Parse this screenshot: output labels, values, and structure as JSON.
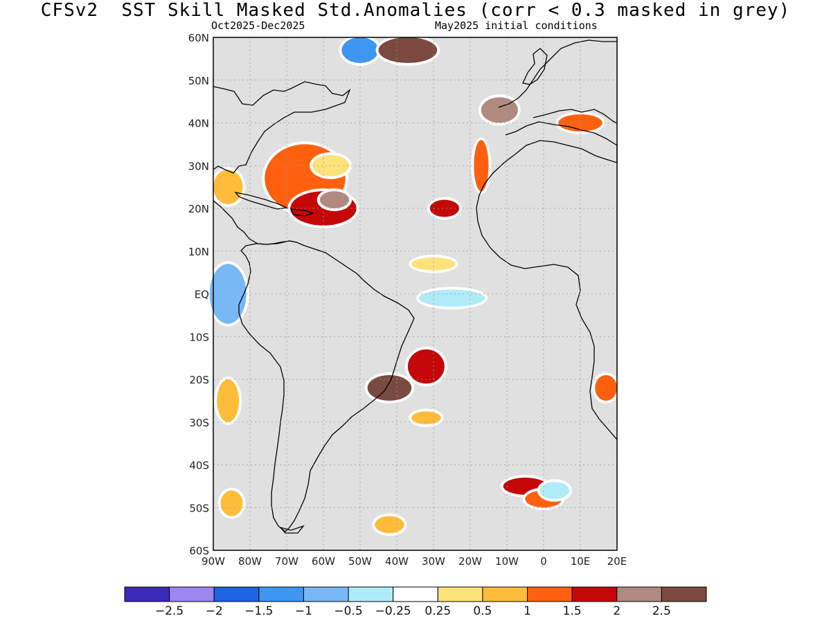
{
  "header": {
    "title": "CFSv2  SST Skill Masked Std.Anomalies (corr < 0.3 masked in grey)",
    "valid_period": "Oct2025-Dec2025",
    "initial_conditions": "May2025 initial conditions"
  },
  "map": {
    "lon_range": [
      -90,
      20
    ],
    "lat_range": [
      -60,
      60
    ],
    "mask_color": "#e0e0e0",
    "grid": "dotted",
    "lat_ticks": [
      {
        "lat": 60,
        "label": "60N"
      },
      {
        "lat": 50,
        "label": "50N"
      },
      {
        "lat": 40,
        "label": "40N"
      },
      {
        "lat": 30,
        "label": "30N"
      },
      {
        "lat": 20,
        "label": "20N"
      },
      {
        "lat": 10,
        "label": "10N"
      },
      {
        "lat": 0,
        "label": "EQ"
      },
      {
        "lat": -10,
        "label": "10S"
      },
      {
        "lat": -20,
        "label": "20S"
      },
      {
        "lat": -30,
        "label": "30S"
      },
      {
        "lat": -40,
        "label": "40S"
      },
      {
        "lat": -50,
        "label": "50S"
      },
      {
        "lat": -60,
        "label": "60S"
      }
    ],
    "lon_ticks": [
      {
        "lon": -90,
        "label": "90W"
      },
      {
        "lon": -80,
        "label": "80W"
      },
      {
        "lon": -70,
        "label": "70W"
      },
      {
        "lon": -60,
        "label": "60W"
      },
      {
        "lon": -50,
        "label": "50W"
      },
      {
        "lon": -40,
        "label": "40W"
      },
      {
        "lon": -30,
        "label": "30W"
      },
      {
        "lon": -20,
        "label": "20W"
      },
      {
        "lon": -10,
        "label": "10W"
      },
      {
        "lon": 0,
        "label": "0"
      },
      {
        "lon": 10,
        "label": "10E"
      },
      {
        "lon": 20,
        "label": "20E"
      }
    ]
  },
  "colorbar": {
    "colors": [
      "#3a2ab8",
      "#9b86f2",
      "#1e64e4",
      "#3c96f2",
      "#78b8f4",
      "#b0ecf8",
      "#ffffff",
      "#ffe27a",
      "#ffbc3a",
      "#ff6010",
      "#c40808",
      "#b08a80",
      "#7a4a40"
    ],
    "labels": [
      "-2.5",
      "-2",
      "-1.5",
      "-1",
      "-0.5",
      "-0.25",
      "0.25",
      "0.5",
      "1",
      "1.5",
      "2",
      "2.5"
    ]
  },
  "anomalies": [
    {
      "name": "gulf-stream-subtropics",
      "lon": -65,
      "lat": 27,
      "rx": 11,
      "ry": 8,
      "color": "#ff6010"
    },
    {
      "name": "sargasso-warm-core",
      "lon": -58,
      "lat": 30,
      "rx": 5,
      "ry": 2.5,
      "color": "#ffe27a"
    },
    {
      "name": "caribbean-warm",
      "lon": -60,
      "lat": 20,
      "rx": 9,
      "ry": 4,
      "color": "#c40808"
    },
    {
      "name": "caribbean-strong",
      "lon": -57,
      "lat": 22,
      "rx": 4,
      "ry": 2,
      "color": "#b08a80"
    },
    {
      "name": "gulf-of-mexico",
      "lon": -86,
      "lat": 25,
      "rx": 4,
      "ry": 4,
      "color": "#ffbc3a"
    },
    {
      "name": "labrador-sea-cold",
      "lon": -50,
      "lat": 57,
      "rx": 5,
      "ry": 3,
      "color": "#3c96f2"
    },
    {
      "name": "north-atlantic-strong",
      "lon": -37,
      "lat": 57,
      "rx": 8,
      "ry": 3,
      "color": "#7a4a40"
    },
    {
      "name": "iberian-strong",
      "lon": -12,
      "lat": 43,
      "rx": 5,
      "ry": 3,
      "color": "#b08a80"
    },
    {
      "name": "canary-warm",
      "lon": -17,
      "lat": 30,
      "rx": 2,
      "ry": 6,
      "color": "#ff6010"
    },
    {
      "name": "subtropical-east",
      "lon": -27,
      "lat": 20,
      "rx": 4,
      "ry": 2,
      "color": "#c40808"
    },
    {
      "name": "mediterranean-warm",
      "lon": 10,
      "lat": 40,
      "rx": 6,
      "ry": 2,
      "color": "#ff6010"
    },
    {
      "name": "eastern-pacific-cold",
      "lon": -86,
      "lat": 0,
      "rx": 5,
      "ry": 7,
      "color": "#78b8f4"
    },
    {
      "name": "equatorial-cold",
      "lon": -25,
      "lat": -1,
      "rx": 9,
      "ry": 2,
      "color": "#b0ecf8"
    },
    {
      "name": "tropical-warm-band",
      "lon": -30,
      "lat": 7,
      "rx": 6,
      "ry": 1.5,
      "color": "#ffe27a"
    },
    {
      "name": "brazil-current-strong",
      "lon": -42,
      "lat": -22,
      "rx": 6,
      "ry": 3,
      "color": "#7a4a40"
    },
    {
      "name": "south-atlantic-warm",
      "lon": -32,
      "lat": -17,
      "rx": 5,
      "ry": 4,
      "color": "#c40808"
    },
    {
      "name": "south-atlantic-mid",
      "lon": -32,
      "lat": -29,
      "rx": 4,
      "ry": 1.5,
      "color": "#ffbc3a"
    },
    {
      "name": "benguela-warm",
      "lon": 17,
      "lat": -22,
      "rx": 3,
      "ry": 3,
      "color": "#ff6010"
    },
    {
      "name": "southern-ocean-warm",
      "lon": -5,
      "lat": -45,
      "rx": 6,
      "ry": 2,
      "color": "#c40808"
    },
    {
      "name": "southern-ocean-strong",
      "lon": 0,
      "lat": -48,
      "rx": 5,
      "ry": 2,
      "color": "#ff6010"
    },
    {
      "name": "southern-ocean-cold",
      "lon": 3,
      "lat": -46,
      "rx": 4,
      "ry": 2,
      "color": "#b0ecf8"
    },
    {
      "name": "drake-warm",
      "lon": -42,
      "lat": -54,
      "rx": 4,
      "ry": 2,
      "color": "#ffbc3a"
    },
    {
      "name": "se-pacific-warm",
      "lon": -86,
      "lat": -25,
      "rx": 3,
      "ry": 5,
      "color": "#ffbc3a"
    },
    {
      "name": "patagonia-pacific",
      "lon": -85,
      "lat": -49,
      "rx": 3,
      "ry": 3,
      "color": "#ffbc3a"
    }
  ]
}
